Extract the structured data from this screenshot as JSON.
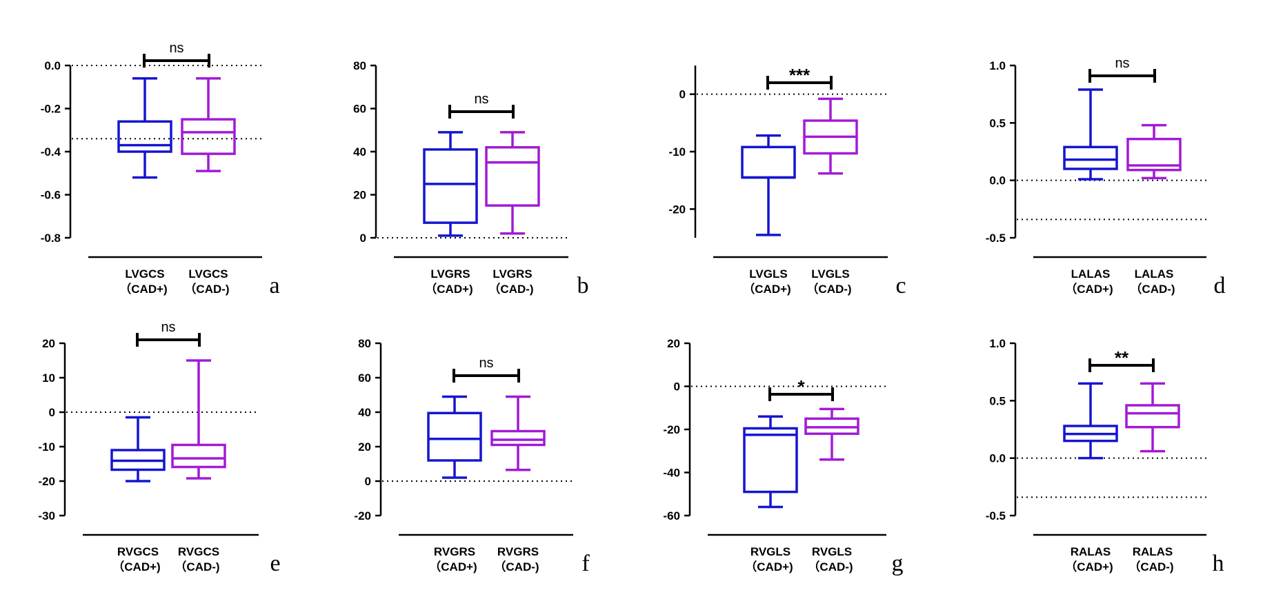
{
  "colors": {
    "cad_pos": "#1515d0",
    "cad_neg": "#a21ad6",
    "axis": "#000000"
  },
  "chart_data": [
    {
      "type": "box",
      "panel": "a",
      "ylim": [
        -0.8,
        0.0
      ],
      "yticks": [
        0.0,
        -0.2,
        -0.4,
        -0.6,
        -0.8
      ],
      "ytick_labels": [
        "0.0",
        "-0.2",
        "-0.4",
        "-0.6",
        "-0.8"
      ],
      "reference_lines": [
        0.0,
        -0.34
      ],
      "groups": [
        {
          "name": "LVGCS",
          "subname": "（CAD+)",
          "min": -0.52,
          "q1": -0.4,
          "median": -0.37,
          "q3": -0.26,
          "max": -0.06
        },
        {
          "name": "LVGCS",
          "subname": "（CAD-)",
          "min": -0.49,
          "q1": -0.41,
          "median": -0.31,
          "q3": -0.25,
          "max": -0.06
        }
      ],
      "significance": "ns"
    },
    {
      "type": "box",
      "panel": "b",
      "ylim": [
        0,
        80
      ],
      "yticks": [
        80,
        60,
        40,
        20,
        0
      ],
      "ytick_labels": [
        "80",
        "60",
        "40",
        "20",
        "0"
      ],
      "reference_lines": [
        0
      ],
      "groups": [
        {
          "name": "LVGRS",
          "subname": "（CAD+)",
          "min": 1,
          "q1": 7,
          "median": 25,
          "q3": 41,
          "max": 49
        },
        {
          "name": "LVGRS",
          "subname": "（CAD-)",
          "min": 2,
          "q1": 15,
          "median": 35,
          "q3": 42,
          "max": 49
        }
      ],
      "significance": "ns"
    },
    {
      "type": "box",
      "panel": "c",
      "ylim": [
        -25,
        5
      ],
      "yticks": [
        0,
        -10,
        -20
      ],
      "ytick_labels": [
        "0",
        "-10",
        "-20"
      ],
      "reference_lines": [
        0
      ],
      "groups": [
        {
          "name": "LVGLS",
          "subname": "（CAD+)",
          "min": -24.5,
          "q1": -14.5,
          "median": -14.5,
          "q3": -9.2,
          "max": -7.2
        },
        {
          "name": "LVGLS",
          "subname": "（CAD-)",
          "min": -13.8,
          "q1": -10.3,
          "median": -7.4,
          "q3": -4.6,
          "max": -0.8
        }
      ],
      "significance": "***"
    },
    {
      "type": "box",
      "panel": "d",
      "ylim": [
        -0.5,
        1.0
      ],
      "yticks": [
        1.0,
        0.5,
        0.0,
        -0.5
      ],
      "ytick_labels": [
        "1.0",
        "0.5",
        "0.0",
        "-0.5"
      ],
      "reference_lines": [
        0.0,
        -0.34
      ],
      "groups": [
        {
          "name": "LALAS",
          "subname": "（CAD+)",
          "min": 0.01,
          "q1": 0.1,
          "median": 0.18,
          "q3": 0.29,
          "max": 0.79
        },
        {
          "name": "LALAS",
          "subname": "（CAD-)",
          "min": 0.02,
          "q1": 0.09,
          "median": 0.13,
          "q3": 0.36,
          "max": 0.48
        }
      ],
      "significance": "ns"
    },
    {
      "type": "box",
      "panel": "e",
      "ylim": [
        -30,
        20
      ],
      "yticks": [
        20,
        10,
        0,
        -10,
        -20,
        -30
      ],
      "ytick_labels": [
        "20",
        "10",
        "0",
        "-10",
        "-20",
        "-30"
      ],
      "reference_lines": [
        0
      ],
      "groups": [
        {
          "name": "RVGCS",
          "subname": "（CAD+)",
          "min": -20,
          "q1": -16.7,
          "median": -14.1,
          "q3": -11,
          "max": -1.5
        },
        {
          "name": "RVGCS",
          "subname": "（CAD-)",
          "min": -19.2,
          "q1": -15.9,
          "median": -13.4,
          "q3": -9.5,
          "max": 15
        }
      ],
      "significance": "ns"
    },
    {
      "type": "box",
      "panel": "f",
      "ylim": [
        -20,
        80
      ],
      "yticks": [
        80,
        60,
        40,
        20,
        0,
        -20
      ],
      "ytick_labels": [
        "80",
        "60",
        "40",
        "20",
        "0",
        "-20"
      ],
      "reference_lines": [
        0
      ],
      "groups": [
        {
          "name": "RVGRS",
          "subname": "（CAD+)",
          "min": 2,
          "q1": 12,
          "median": 24.5,
          "q3": 39.5,
          "max": 49
        },
        {
          "name": "RVGRS",
          "subname": "（CAD-)",
          "min": 6.5,
          "q1": 21,
          "median": 24,
          "q3": 29,
          "max": 49
        }
      ],
      "significance": "ns"
    },
    {
      "type": "box",
      "panel": "g",
      "ylim": [
        -60,
        20
      ],
      "yticks": [
        20,
        0,
        -20,
        -40,
        -60
      ],
      "ytick_labels": [
        "20",
        "0",
        "-20",
        "-40",
        "-60"
      ],
      "reference_lines": [
        0
      ],
      "groups": [
        {
          "name": "RVGLS",
          "subname": "（CAD+)",
          "min": -56,
          "q1": -49,
          "median": -22.5,
          "q3": -19.5,
          "max": -14
        },
        {
          "name": "RVGLS",
          "subname": "（CAD-)",
          "min": -34,
          "q1": -22,
          "median": -19,
          "q3": -15,
          "max": -10.5
        }
      ],
      "significance": "*"
    },
    {
      "type": "box",
      "panel": "h",
      "ylim": [
        -0.5,
        1.0
      ],
      "yticks": [
        1.0,
        0.5,
        0.0,
        -0.5
      ],
      "ytick_labels": [
        "1.0",
        "0.5",
        "0.0",
        "-0.5"
      ],
      "reference_lines": [
        0.0,
        -0.34
      ],
      "groups": [
        {
          "name": "RALAS",
          "subname": "（CAD+)",
          "min": 0.0,
          "q1": 0.15,
          "median": 0.21,
          "q3": 0.28,
          "max": 0.65
        },
        {
          "name": "RALAS",
          "subname": "（CAD-)",
          "min": 0.06,
          "q1": 0.27,
          "median": 0.39,
          "q3": 0.46,
          "max": 0.65
        }
      ],
      "significance": "**"
    }
  ]
}
